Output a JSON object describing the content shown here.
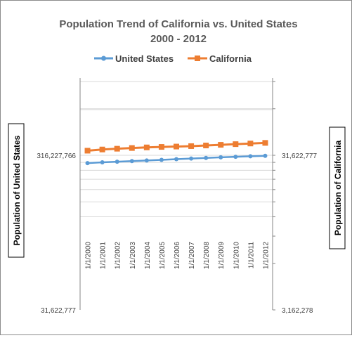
{
  "chart_data": {
    "type": "line",
    "title": "Population Trend of California vs. United States",
    "subtitle": "2000 - 2012",
    "categories": [
      "1/1/2000",
      "1/1/2001",
      "1/1/2002",
      "1/1/2003",
      "1/1/2004",
      "1/1/2005",
      "1/1/2006",
      "1/1/2007",
      "1/1/2008",
      "1/1/2009",
      "1/1/2010",
      "1/1/2011",
      "1/1/2012"
    ],
    "series": [
      {
        "name": "United States",
        "axis": "left",
        "color": "#5B9BD5",
        "marker": "circle",
        "values": [
          281400000,
          284900000,
          287600000,
          290100000,
          292800000,
          295500000,
          298400000,
          301200000,
          304100000,
          306800000,
          309300000,
          311600000,
          313900000
        ]
      },
      {
        "name": "California",
        "axis": "right",
        "color": "#ED7D31",
        "marker": "square",
        "values": [
          33870000,
          34480000,
          34880000,
          35250000,
          35570000,
          35830000,
          36020000,
          36250000,
          36600000,
          36960000,
          37340000,
          37690000,
          38040000
        ]
      }
    ],
    "ylabel": "Population of United States",
    "y2label": "Population of California",
    "yscale": "log",
    "ylim": [
      31622777,
      1000000000
    ],
    "y2lim": [
      3162278,
      100000000
    ],
    "y_tick_labels": [
      "31,622,777",
      "316,227,766"
    ],
    "y_tick_values": [
      31622777,
      316227766
    ],
    "y2_tick_labels": [
      "3,162,278",
      "31,622,777"
    ],
    "y2_tick_values": [
      3162278,
      31622777
    ],
    "grid": true,
    "legend": "top"
  },
  "colors": {
    "united_states": "#5B9BD5",
    "california": "#ED7D31",
    "gridline": "#d9d9d9",
    "axis": "#868686"
  }
}
